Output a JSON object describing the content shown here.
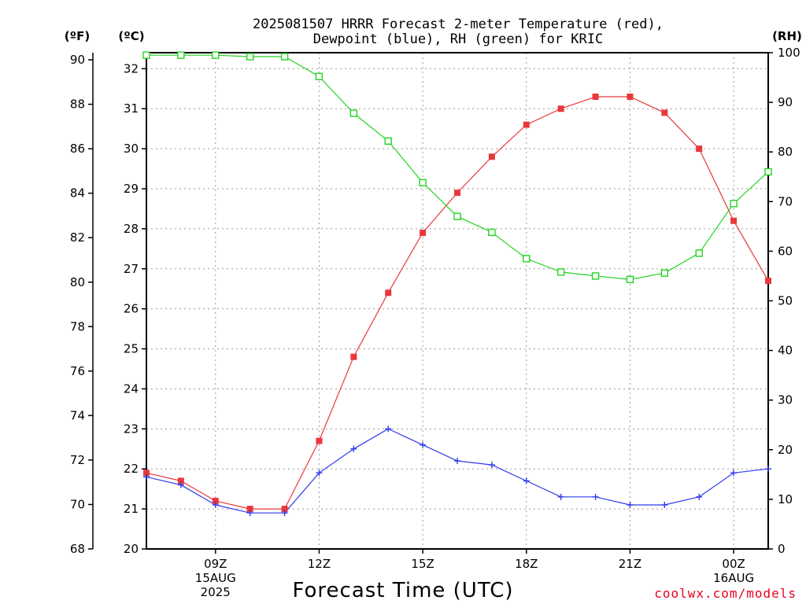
{
  "chart_data": {
    "type": "line",
    "title_line1": "2025081507 HRRR Forecast 2-meter Temperature (red),",
    "title_line2": "Dewpoint (blue), RH (green) for KRIC",
    "xlabel": "Forecast Time (UTC)",
    "left_unit_f": "(ºF)",
    "left_unit_c": "(ºC)",
    "right_unit": "(RH)",
    "credit": "coolwx.com/models",
    "x_hours": [
      7,
      8,
      9,
      10,
      11,
      12,
      13,
      14,
      15,
      16,
      17,
      18,
      19,
      20,
      21,
      22,
      23,
      24,
      25
    ],
    "xlim": [
      7,
      25
    ],
    "ylim_c": [
      20,
      32.4
    ],
    "ylim_rh": [
      0,
      100
    ],
    "grid": true,
    "x_ticks": [
      {
        "hour": 9,
        "lines": [
          "09Z",
          "15AUG",
          "2025"
        ]
      },
      {
        "hour": 12,
        "lines": [
          "12Z"
        ]
      },
      {
        "hour": 15,
        "lines": [
          "15Z"
        ]
      },
      {
        "hour": 18,
        "lines": [
          "18Z"
        ]
      },
      {
        "hour": 21,
        "lines": [
          "21Z"
        ]
      },
      {
        "hour": 24,
        "lines": [
          "00Z",
          "16AUG"
        ]
      }
    ],
    "c_ticks": [
      20,
      21,
      22,
      23,
      24,
      25,
      26,
      27,
      28,
      29,
      30,
      31,
      32
    ],
    "f_ticks": [
      68,
      70,
      72,
      74,
      76,
      78,
      80,
      82,
      84,
      86,
      88,
      90
    ],
    "rh_ticks": [
      0,
      10,
      20,
      30,
      40,
      50,
      60,
      70,
      80,
      90,
      100
    ],
    "series": [
      {
        "name": "Temperature",
        "units": "C",
        "color": "#e8383c",
        "marker": "filled-square",
        "values": [
          21.9,
          21.7,
          21.2,
          21.0,
          21.0,
          22.7,
          24.8,
          26.4,
          27.9,
          28.9,
          29.8,
          30.6,
          31.0,
          31.3,
          31.3,
          30.9,
          30.0,
          28.2,
          26.7
        ]
      },
      {
        "name": "Dewpoint",
        "units": "C",
        "color": "#2f3be8",
        "marker": "plus",
        "values": [
          21.8,
          21.6,
          21.1,
          20.9,
          20.9,
          21.9,
          22.5,
          23.0,
          22.6,
          22.2,
          22.1,
          21.7,
          21.3,
          21.3,
          21.1,
          21.1,
          21.3,
          21.9,
          22.0
        ]
      },
      {
        "name": "RH",
        "units": "%",
        "color": "#22d422",
        "marker": "open-square",
        "values": [
          99.5,
          99.5,
          99.5,
          99.2,
          99.2,
          95.2,
          87.8,
          82.2,
          73.8,
          67.0,
          63.8,
          58.5,
          55.8,
          55.0,
          54.3,
          55.6,
          59.6,
          69.6,
          76.0
        ]
      }
    ]
  }
}
